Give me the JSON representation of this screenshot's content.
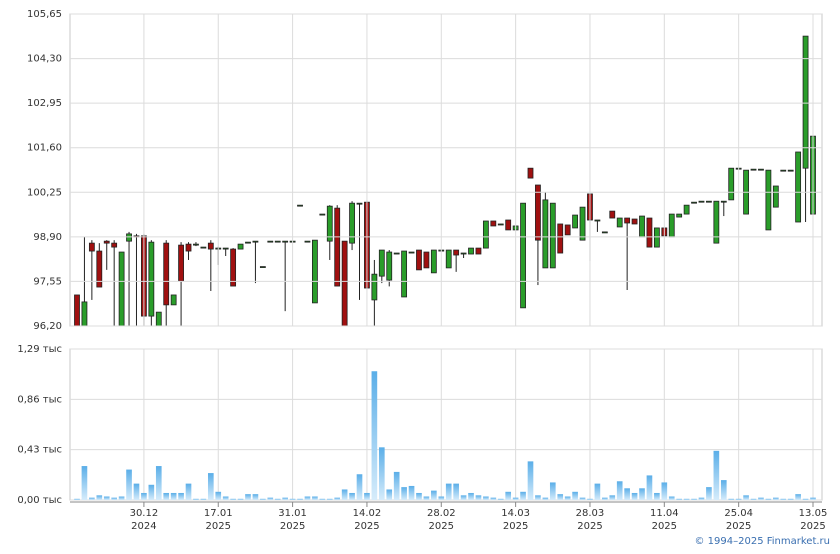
{
  "chart_data": [
    {
      "type": "candlestick",
      "up_color": "#2a9d2a",
      "down_color": "#a01010",
      "ylim": [
        96.2,
        105.65
      ],
      "yticks": [
        {
          "value": 96.2,
          "label": "96,20"
        },
        {
          "value": 97.55,
          "label": "97,55"
        },
        {
          "value": 98.9,
          "label": "98,90"
        },
        {
          "value": 100.25,
          "label": "100,25"
        },
        {
          "value": 101.6,
          "label": "101,60"
        },
        {
          "value": 102.95,
          "label": "102,95"
        },
        {
          "value": 104.3,
          "label": "104,30"
        },
        {
          "value": 105.65,
          "label": "105,65"
        }
      ],
      "grid": true,
      "open": [
        97.14,
        96.2,
        98.71,
        98.47,
        98.77,
        98.71,
        96.2,
        98.77,
        98.93,
        98.93,
        96.5,
        96.2,
        98.71,
        96.84,
        98.65,
        98.68,
        98.68,
        98.59,
        98.71,
        98.56,
        98.56,
        98.53,
        98.53,
        98.74,
        98.77,
        98.0,
        98.77,
        98.77,
        98.77,
        98.77,
        99.86,
        98.77,
        96.9,
        99.59,
        98.77,
        99.77,
        98.77,
        98.71,
        99.92,
        99.95,
        96.99,
        97.71,
        97.59,
        98.41,
        97.08,
        98.44,
        98.5,
        98.44,
        97.81,
        98.5,
        97.96,
        98.5,
        98.41,
        98.38,
        98.56,
        98.56,
        99.38,
        99.29,
        99.41,
        99.11,
        96.75,
        100.98,
        100.47,
        97.96,
        97.96,
        99.29,
        99.26,
        99.17,
        98.8,
        100.2,
        99.41,
        99.05,
        99.68,
        99.2,
        99.47,
        99.44,
        98.9,
        99.47,
        98.59,
        99.17,
        98.9,
        99.5,
        99.59,
        99.95,
        99.98,
        99.98,
        98.71,
        99.98,
        100.02,
        100.98,
        99.59,
        100.95,
        100.95,
        99.11,
        99.8,
        100.92,
        100.92,
        99.35,
        100.98,
        99.59
      ],
      "high": [
        97.14,
        98.9,
        98.8,
        98.71,
        98.8,
        98.8,
        98.44,
        99.05,
        98.99,
        98.99,
        98.8,
        96.62,
        98.8,
        97.14,
        98.74,
        98.74,
        98.74,
        98.59,
        98.8,
        98.6,
        98.56,
        98.56,
        98.68,
        98.74,
        98.77,
        98.0,
        98.77,
        98.77,
        98.77,
        98.77,
        99.86,
        98.77,
        98.8,
        99.59,
        99.86,
        99.86,
        98.77,
        99.98,
        99.92,
        100.0,
        98.2,
        98.5,
        98.5,
        98.41,
        98.47,
        98.44,
        98.5,
        98.44,
        98.5,
        98.5,
        98.5,
        98.5,
        98.41,
        98.56,
        98.56,
        99.38,
        99.38,
        99.29,
        99.41,
        99.23,
        99.92,
        100.98,
        100.47,
        100.25,
        99.92,
        99.29,
        99.26,
        99.56,
        99.8,
        100.2,
        99.41,
        99.05,
        99.68,
        99.47,
        99.47,
        99.44,
        99.53,
        99.47,
        99.17,
        99.17,
        99.59,
        99.59,
        99.86,
        99.95,
        99.98,
        99.98,
        99.98,
        99.98,
        100.98,
        100.98,
        100.92,
        100.95,
        100.95,
        100.92,
        100.44,
        100.92,
        100.92,
        101.47,
        104.98,
        101.95
      ],
      "low": [
        96.2,
        96.2,
        96.99,
        97.38,
        97.9,
        96.2,
        96.2,
        96.2,
        96.2,
        96.2,
        96.2,
        96.2,
        96.2,
        96.84,
        96.2,
        98.2,
        98.62,
        98.59,
        97.26,
        98.05,
        98.32,
        97.41,
        98.53,
        98.74,
        97.5,
        98.0,
        98.77,
        98.77,
        96.65,
        98.77,
        99.86,
        98.77,
        96.9,
        99.59,
        98.2,
        97.41,
        96.2,
        98.5,
        96.99,
        97.35,
        96.2,
        97.5,
        97.4,
        98.41,
        97.08,
        98.44,
        97.9,
        97.96,
        97.81,
        98.5,
        97.96,
        97.84,
        98.26,
        98.38,
        98.38,
        98.56,
        99.23,
        99.29,
        99.11,
        99.11,
        96.75,
        100.68,
        97.44,
        97.96,
        97.96,
        98.41,
        98.96,
        99.17,
        98.8,
        98.17,
        99.05,
        99.05,
        99.47,
        99.2,
        97.29,
        99.29,
        98.9,
        98.59,
        98.59,
        98.93,
        98.9,
        99.5,
        99.59,
        99.95,
        99.98,
        99.98,
        98.71,
        99.53,
        100.02,
        100.98,
        99.59,
        100.95,
        100.95,
        99.11,
        99.8,
        100.92,
        100.92,
        99.35,
        99.35,
        99.05
      ],
      "close": [
        96.2,
        96.93,
        98.47,
        97.38,
        98.71,
        98.59,
        98.44,
        98.99,
        98.9,
        96.5,
        98.74,
        96.62,
        96.84,
        97.14,
        97.56,
        98.47,
        98.68,
        98.59,
        98.53,
        98.56,
        98.56,
        97.41,
        98.68,
        98.74,
        98.77,
        98.0,
        98.77,
        98.77,
        98.77,
        98.77,
        99.86,
        98.77,
        98.8,
        99.59,
        99.83,
        97.41,
        96.2,
        99.92,
        99.92,
        97.35,
        97.77,
        98.5,
        98.44,
        98.41,
        98.47,
        98.44,
        97.9,
        97.96,
        98.5,
        98.5,
        98.5,
        98.35,
        98.41,
        98.56,
        98.38,
        99.38,
        99.23,
        99.29,
        99.11,
        99.23,
        99.92,
        100.68,
        98.8,
        100.02,
        99.92,
        98.41,
        98.96,
        99.56,
        99.8,
        99.41,
        99.41,
        99.05,
        99.47,
        99.47,
        99.32,
        99.29,
        99.53,
        98.59,
        99.17,
        98.93,
        99.59,
        99.59,
        99.86,
        99.95,
        99.98,
        99.98,
        99.98,
        99.98,
        100.98,
        100.98,
        100.92,
        100.95,
        100.95,
        100.92,
        100.44,
        100.92,
        100.92,
        101.47,
        104.98,
        101.95
      ]
    },
    {
      "type": "bar",
      "color": "#86c4ee",
      "ylim": [
        0,
        1.29
      ],
      "yticks": [
        {
          "value": 0,
          "label": "0,00 тыс"
        },
        {
          "value": 0.43,
          "label": "0,43 тыс"
        },
        {
          "value": 0.86,
          "label": "0,86 тыс"
        },
        {
          "value": 1.29,
          "label": "1,29 тыс"
        }
      ],
      "grid": true,
      "categories": [
        null,
        null,
        null,
        null,
        null,
        null,
        null,
        null,
        null,
        "30.12",
        null,
        null,
        null,
        null,
        null,
        null,
        null,
        null,
        null,
        "17.01",
        null,
        null,
        null,
        null,
        null,
        null,
        null,
        null,
        null,
        "31.01",
        null,
        null,
        null,
        null,
        null,
        null,
        null,
        null,
        null,
        "14.02",
        null,
        null,
        null,
        null,
        null,
        null,
        null,
        null,
        null,
        "28.02",
        null,
        null,
        null,
        null,
        null,
        null,
        null,
        null,
        null,
        "14.03",
        null,
        null,
        null,
        null,
        null,
        null,
        null,
        null,
        null,
        "28.03",
        null,
        null,
        null,
        null,
        null,
        null,
        null,
        null,
        null,
        "11.04",
        null,
        null,
        null,
        null,
        null,
        null,
        null,
        null,
        null,
        "25.04",
        null,
        null,
        null,
        null,
        null,
        null,
        null,
        null,
        null,
        "13.05"
      ],
      "category_years": [
        null,
        null,
        null,
        null,
        null,
        null,
        null,
        null,
        null,
        "2024",
        null,
        null,
        null,
        null,
        null,
        null,
        null,
        null,
        null,
        "2025",
        null,
        null,
        null,
        null,
        null,
        null,
        null,
        null,
        null,
        "2025",
        null,
        null,
        null,
        null,
        null,
        null,
        null,
        null,
        null,
        "2025",
        null,
        null,
        null,
        null,
        null,
        null,
        null,
        null,
        null,
        "2025",
        null,
        null,
        null,
        null,
        null,
        null,
        null,
        null,
        null,
        "2025",
        null,
        null,
        null,
        null,
        null,
        null,
        null,
        null,
        null,
        "2025",
        null,
        null,
        null,
        null,
        null,
        null,
        null,
        null,
        null,
        "2025",
        null,
        null,
        null,
        null,
        null,
        null,
        null,
        null,
        null,
        "2025",
        null,
        null,
        null,
        null,
        null,
        null,
        null,
        null,
        null,
        "2025"
      ],
      "values": [
        0.01,
        0.29,
        0.02,
        0.04,
        0.03,
        0.02,
        0.03,
        0.26,
        0.14,
        0.06,
        0.13,
        0.29,
        0.06,
        0.06,
        0.06,
        0.14,
        0.01,
        0.01,
        0.23,
        0.07,
        0.03,
        0.01,
        0.01,
        0.05,
        0.05,
        0.01,
        0.02,
        0.01,
        0.02,
        0.01,
        0.01,
        0.03,
        0.03,
        0.01,
        0.01,
        0.02,
        0.09,
        0.06,
        0.22,
        0.06,
        1.1,
        0.45,
        0.09,
        0.24,
        0.11,
        0.12,
        0.06,
        0.03,
        0.08,
        0.03,
        0.14,
        0.14,
        0.04,
        0.06,
        0.04,
        0.03,
        0.02,
        0.01,
        0.07,
        0.02,
        0.07,
        0.33,
        0.04,
        0.02,
        0.15,
        0.05,
        0.03,
        0.07,
        0.02,
        0.01,
        0.14,
        0.02,
        0.04,
        0.16,
        0.1,
        0.06,
        0.1,
        0.21,
        0.06,
        0.15,
        0.03,
        0.01,
        0.01,
        0.01,
        0.02,
        0.11,
        0.42,
        0.17,
        0.01,
        0.01,
        0.04,
        0.01,
        0.02,
        0.01,
        0.02,
        0.01,
        0.01,
        0.05,
        0.01,
        0.02
      ]
    }
  ],
  "footer": "© 1994–2025 Finmarket.ru"
}
